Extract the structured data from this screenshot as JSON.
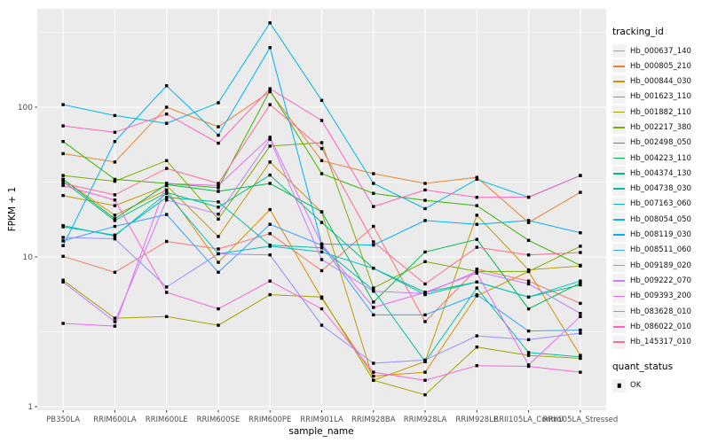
{
  "chart_data": {
    "type": "line",
    "title": "",
    "xlabel": "sample_name",
    "ylabel": "FPKM + 1",
    "y_scale": "log10",
    "y_ticks": [
      1,
      10,
      100
    ],
    "ylim": [
      1,
      460
    ],
    "grid": "on",
    "legend_position": "right",
    "legend_title": "tracking_id",
    "legend2_title": "quant_status",
    "legend2_items": [
      "OK"
    ],
    "point_color": "#000000",
    "panel_bg": "#EBEBEB",
    "grid_color": "#FFFFFF",
    "tick_label_color": "#4D4D4D",
    "categories": [
      "PB350LA",
      "RRIM600LA",
      "RRIM600LE",
      "RRIM600SE",
      "RRIM600PE",
      "RRIM901LA",
      "RRIM928BA",
      "RRIM928LA",
      "RRIM928LE",
      "RRII105LA_Control",
      "RRII105LA_Stressed"
    ],
    "series": [
      {
        "name": "Hb_000637_140",
        "color": "#F8766D",
        "values": [
          10.1,
          7.9,
          12.7,
          11.3,
          14.3,
          8.1,
          16.0,
          3.7,
          8.3,
          6.9,
          4.9
        ]
      },
      {
        "name": "Hb_000805_210",
        "color": "#EA8331",
        "values": [
          49,
          43,
          100,
          74,
          127,
          44,
          36,
          31,
          34,
          17,
          27
        ]
      },
      {
        "name": "Hb_000844_030",
        "color": "#D89000",
        "values": [
          33,
          19,
          28,
          9.2,
          20.7,
          5.3,
          1.6,
          1.7,
          5.5,
          8.0,
          2.2
        ]
      },
      {
        "name": "Hb_001623_110",
        "color": "#C09B00",
        "values": [
          25.7,
          22,
          30,
          13.7,
          43,
          20,
          1.5,
          2.0,
          19,
          8.2,
          8.7
        ]
      },
      {
        "name": "Hb_001882_110",
        "color": "#A3A500",
        "values": [
          7.0,
          3.9,
          4.0,
          3.5,
          5.6,
          5.4,
          1.5,
          1.2,
          2.5,
          2.2,
          2.1
        ]
      },
      {
        "name": "Hb_002217_380",
        "color": "#7CAE00",
        "values": [
          35,
          32,
          44,
          17.9,
          55,
          58,
          6.2,
          9.3,
          8.0,
          8.0,
          11.8
        ]
      },
      {
        "name": "Hb_002498_050",
        "color": "#39B600",
        "values": [
          59,
          33,
          31,
          29,
          129,
          36,
          26.6,
          23.9,
          22,
          12.9,
          8.8
        ]
      },
      {
        "name": "Hb_004223_110",
        "color": "#00BB4E",
        "values": [
          33,
          18,
          30.5,
          27.4,
          31,
          20,
          5.0,
          10.8,
          13.1,
          4.5,
          6.7
        ]
      },
      {
        "name": "Hb_004374_130",
        "color": "#00BF7D",
        "values": [
          32,
          17.5,
          27,
          21.5,
          35.2,
          17,
          8.4,
          5.8,
          6.8,
          5.4,
          6.5
        ]
      },
      {
        "name": "Hb_004738_030",
        "color": "#00C1A3",
        "values": [
          15.9,
          14.0,
          25,
          23.3,
          12.0,
          11.5,
          6.0,
          2.0,
          6.2,
          2.3,
          2.15
        ]
      },
      {
        "name": "Hb_007163_060",
        "color": "#00BFC4",
        "values": [
          16.2,
          13.8,
          26.6,
          10.5,
          11.8,
          10.8,
          8.4,
          5.6,
          6.8,
          5.4,
          6.9
        ]
      },
      {
        "name": "Hb_008054_050",
        "color": "#00BAE0",
        "values": [
          104,
          88,
          78,
          107,
          366,
          111,
          31,
          21,
          33,
          25,
          35
        ]
      },
      {
        "name": "Hb_008119_030",
        "color": "#00B0F6",
        "values": [
          11.9,
          59,
          139,
          65,
          250,
          12.2,
          12.0,
          17.5,
          16.5,
          17.5,
          14.5
        ]
      },
      {
        "name": "Hb_008511_060",
        "color": "#35A2FF",
        "values": [
          12.8,
          16,
          19.2,
          7.9,
          16.5,
          12,
          4.1,
          4.1,
          5.6,
          3.2,
          3.25
        ]
      },
      {
        "name": "Hb_009189_020",
        "color": "#9590FF",
        "values": [
          13.5,
          13.2,
          6.3,
          10.5,
          10.3,
          3.5,
          1.95,
          2.05,
          2.97,
          2.8,
          3.1
        ]
      },
      {
        "name": "Hb_009222_070",
        "color": "#C77CFF",
        "values": [
          6.8,
          3.7,
          24,
          19.3,
          61,
          9.6,
          5.9,
          5.7,
          8.0,
          6.6,
          4.2
        ]
      },
      {
        "name": "Hb_009393_200",
        "color": "#E76BF3",
        "values": [
          3.6,
          3.45,
          31,
          30,
          63,
          12.2,
          4.6,
          5.8,
          7.8,
          1.9,
          4.0
        ]
      },
      {
        "name": "Hb_083628_010",
        "color": "#FA62DB",
        "values": [
          30,
          24,
          5.8,
          4.5,
          6.9,
          4.5,
          1.7,
          1.5,
          1.88,
          1.86,
          1.7
        ]
      },
      {
        "name": "Hb_086022_010",
        "color": "#FF62BC",
        "values": [
          75,
          68,
          90,
          57.5,
          133,
          81.5,
          21.7,
          28,
          25,
          25.1,
          35
        ]
      },
      {
        "name": "Hb_145317_010",
        "color": "#FF6A98",
        "values": [
          31,
          26,
          39,
          31,
          104,
          53,
          12.6,
          6.6,
          11.6,
          10.3,
          10.7
        ]
      }
    ]
  }
}
